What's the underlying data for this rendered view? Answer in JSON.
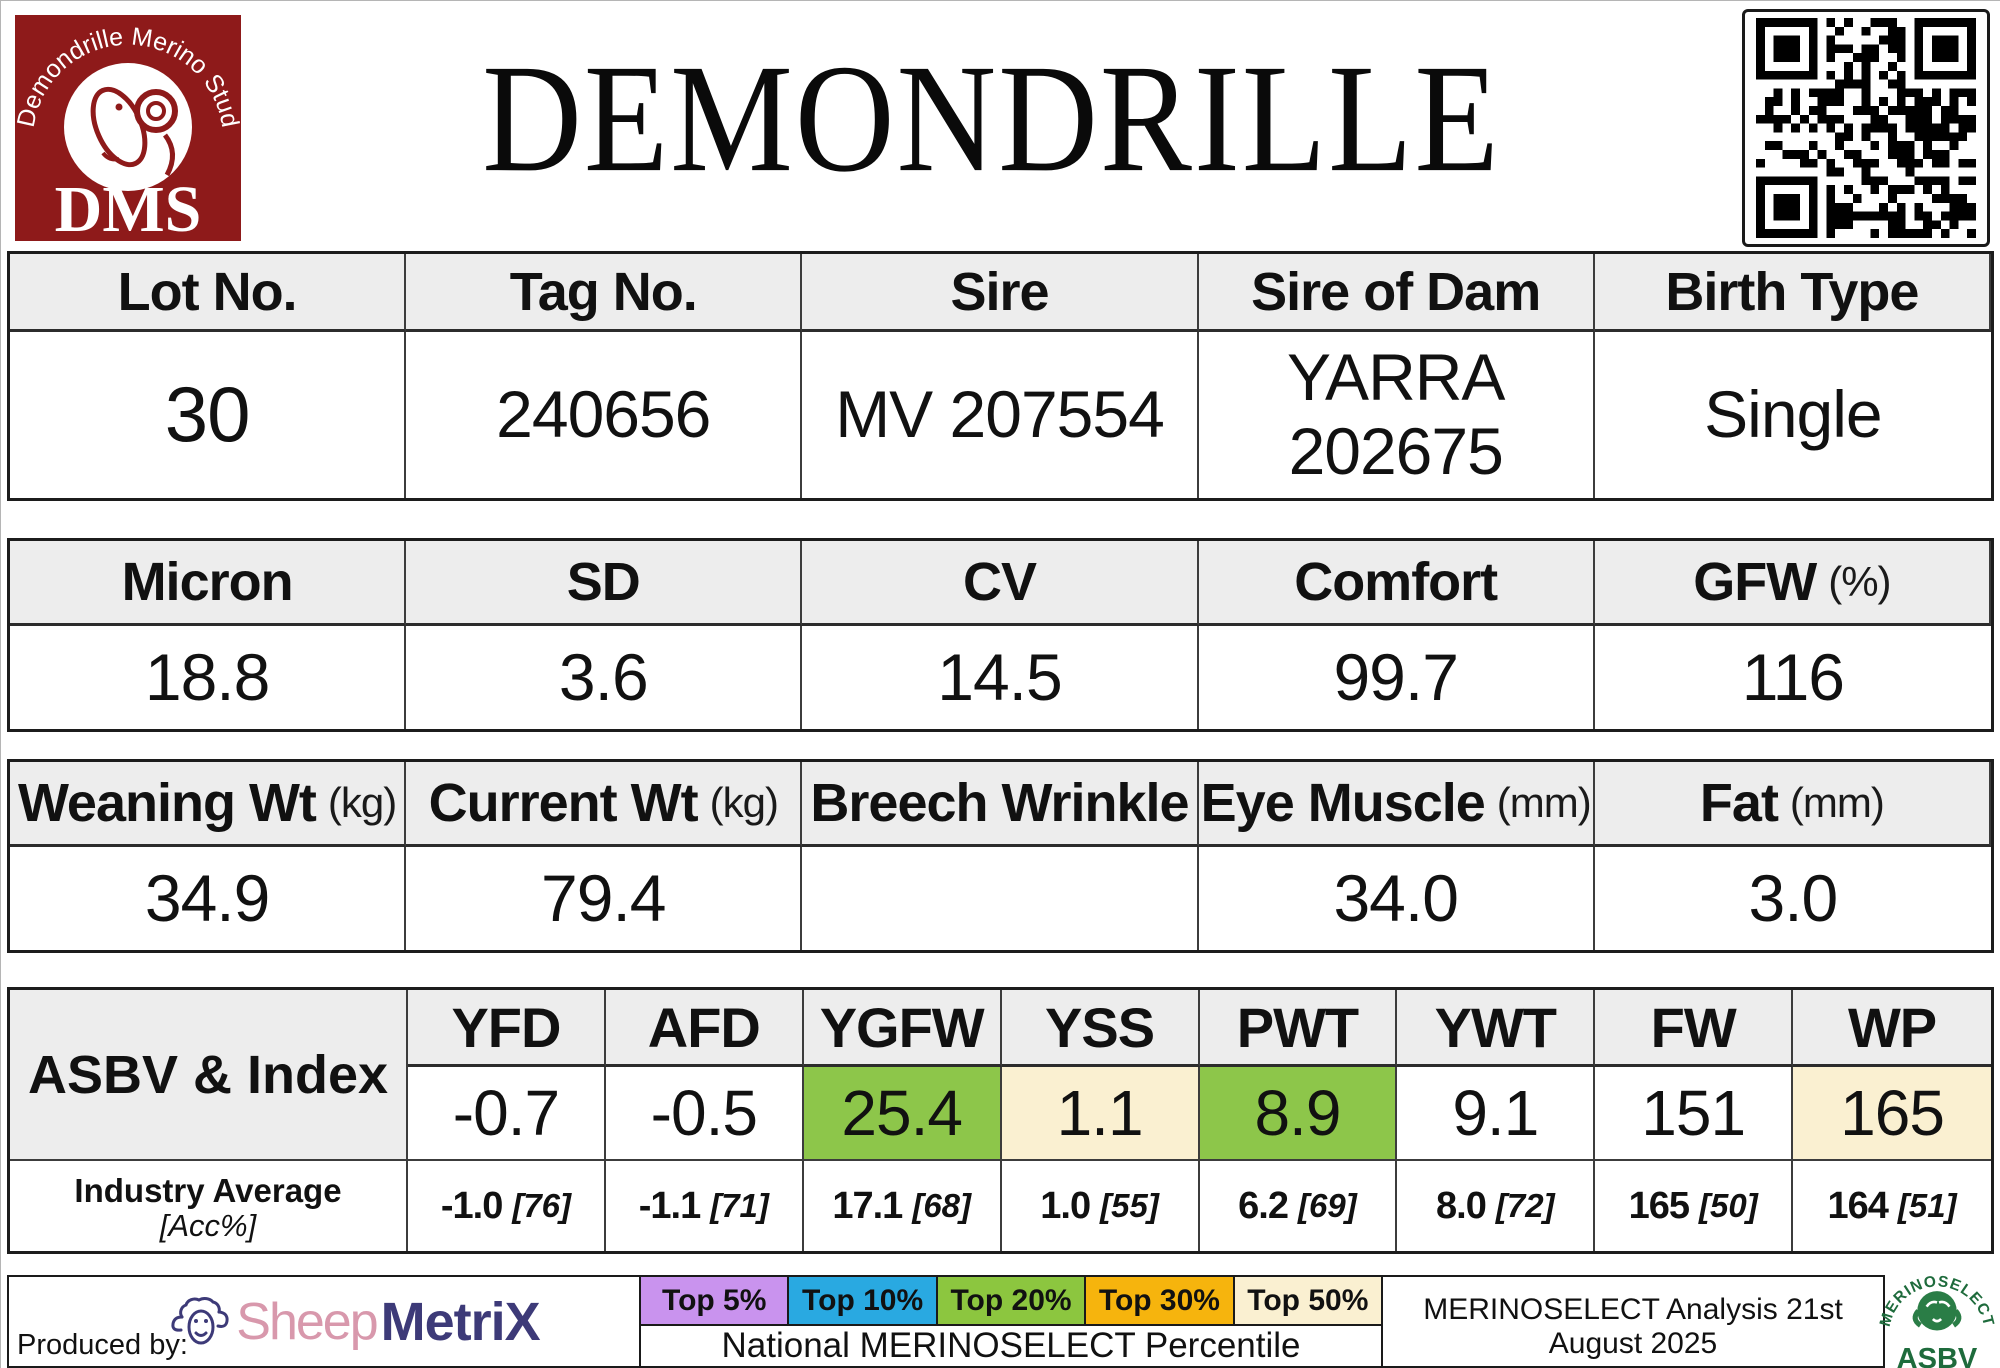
{
  "header": {
    "title": "DEMONDRILLE",
    "dms_logo": {
      "arc_text": "Demondrille Merino Stud",
      "monogram": "DMS",
      "bg_color": "#8e1a1a"
    }
  },
  "identity": {
    "headers": [
      "Lot No.",
      "Tag No.",
      "Sire",
      "Sire of Dam",
      "Birth Type"
    ],
    "values": [
      "30",
      "240656",
      "MV 207554",
      "YARRA 202675",
      "Single"
    ]
  },
  "wool": {
    "headers": [
      {
        "label": "Micron",
        "unit": ""
      },
      {
        "label": "SD",
        "unit": ""
      },
      {
        "label": "CV",
        "unit": ""
      },
      {
        "label": "Comfort",
        "unit": ""
      },
      {
        "label": "GFW",
        "unit": "(%)"
      }
    ],
    "values": [
      "18.8",
      "3.6",
      "14.5",
      "99.7",
      "116"
    ]
  },
  "body_traits": {
    "headers": [
      {
        "label": "Weaning Wt",
        "unit": "(kg)"
      },
      {
        "label": "Current Wt",
        "unit": "(kg)"
      },
      {
        "label": "Breech Wrinkle",
        "unit": ""
      },
      {
        "label": "Eye Muscle",
        "unit": "(mm)"
      },
      {
        "label": "Fat",
        "unit": "(mm)"
      }
    ],
    "values": [
      "34.9",
      "79.4",
      "",
      "34.0",
      "3.0"
    ]
  },
  "asbv": {
    "row_label": "ASBV & Index",
    "industry_label": "Industry Average",
    "industry_sublabel": "[Acc%]",
    "columns": [
      {
        "trait": "YFD",
        "value": "-0.7",
        "highlight": "none",
        "industry": "-1.0",
        "acc": "[76]"
      },
      {
        "trait": "AFD",
        "value": "-0.5",
        "highlight": "none",
        "industry": "-1.1",
        "acc": "[71]"
      },
      {
        "trait": "YGFW",
        "value": "25.4",
        "highlight": "top20",
        "industry": "17.1",
        "acc": "[68]"
      },
      {
        "trait": "YSS",
        "value": "1.1",
        "highlight": "top50",
        "industry": "1.0",
        "acc": "[55]"
      },
      {
        "trait": "PWT",
        "value": "8.9",
        "highlight": "top20",
        "industry": "6.2",
        "acc": "[69]"
      },
      {
        "trait": "YWT",
        "value": "9.1",
        "highlight": "none",
        "industry": "8.0",
        "acc": "[72]"
      },
      {
        "trait": "FW",
        "value": "151",
        "highlight": "none",
        "industry": "165",
        "acc": "[50]"
      },
      {
        "trait": "WP",
        "value": "165",
        "highlight": "top50",
        "industry": "164",
        "acc": "[51]"
      }
    ],
    "highlight_colors": {
      "top20": "#8dc64a",
      "top50": "#faf0d1"
    }
  },
  "footer": {
    "produced_by": "Produced by:",
    "brand": {
      "part1": "Sheep",
      "part2": "MetriX"
    },
    "legend": [
      {
        "label": "Top 5%",
        "color": "#c993ee"
      },
      {
        "label": "Top 10%",
        "color": "#29a9e1"
      },
      {
        "label": "Top 20%",
        "color": "#8cc63f"
      },
      {
        "label": "Top 30%",
        "color": "#f6b40d"
      },
      {
        "label": "Top 50%",
        "color": "#faf0d1"
      }
    ],
    "legend_caption": "National MERINOSELECT Percentile",
    "analysis_note": "MERINOSELECT Analysis 21st August 2025",
    "asbv_logo": {
      "arc_text": "MERINOSELECT",
      "label": "ASBV",
      "color": "#1e6b3c"
    }
  }
}
